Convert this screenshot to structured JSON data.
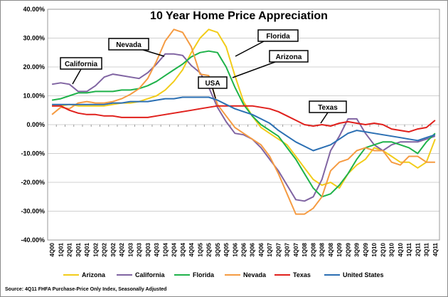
{
  "chart_data": {
    "type": "line",
    "title": "10 Year Home Price Appreciation",
    "xlabel": "",
    "ylabel": "",
    "ylim": [
      -40,
      40
    ],
    "y_ticks": [
      "40.00%",
      "30.00%",
      "20.00%",
      "10.00%",
      "0.00%",
      "-10.00%",
      "-20.00%",
      "-30.00%",
      "-40.00%"
    ],
    "y_tick_values": [
      40,
      30,
      20,
      10,
      0,
      -10,
      -20,
      -30,
      -40
    ],
    "grid": true,
    "legend_position": "bottom",
    "categories": [
      "4Q00",
      "1Q01",
      "2Q01",
      "3Q01",
      "4Q01",
      "1Q02",
      "2Q02",
      "3Q02",
      "4Q02",
      "1Q03",
      "2Q03",
      "3Q03",
      "4Q03",
      "1Q04",
      "2Q04",
      "3Q04",
      "4Q04",
      "1Q05",
      "2Q05",
      "3Q05",
      "4Q05",
      "1Q06",
      "2Q06",
      "3Q06",
      "4Q06",
      "1Q07",
      "2Q07",
      "3Q07",
      "4Q07",
      "1Q08",
      "2Q08",
      "3Q08",
      "4Q08",
      "1Q09",
      "2Q09",
      "3Q09",
      "4Q09",
      "1Q10",
      "2Q10",
      "3Q10",
      "4Q10",
      "1Q11",
      "2Q11",
      "3Q11",
      "4Q11"
    ],
    "series": [
      {
        "name": "Arizona",
        "color": "#f2cc1a",
        "values": [
          6.5,
          6.5,
          7.0,
          6.5,
          6.5,
          6.5,
          6.5,
          7.0,
          7.5,
          7.5,
          8.0,
          9.0,
          10.0,
          12.0,
          15.0,
          19.0,
          25.0,
          30.0,
          33.0,
          32.0,
          27.0,
          17.0,
          8.0,
          3.0,
          -1.0,
          -3.0,
          -5.0,
          -7.0,
          -11.0,
          -15.0,
          -19.0,
          -21.0,
          -20.0,
          -22.0,
          -17.0,
          -14.0,
          -12.0,
          -8.0,
          -9.0,
          -11.0,
          -13.0,
          -13.0,
          -15.0,
          -13.0,
          -5.0
        ]
      },
      {
        "name": "California",
        "color": "#8064a2",
        "values": [
          14.0,
          14.5,
          14.0,
          11.5,
          11.5,
          13.5,
          16.5,
          17.5,
          17.0,
          16.5,
          16.0,
          18.0,
          21.0,
          24.5,
          24.5,
          24.0,
          20.5,
          18.0,
          13.0,
          6.0,
          1.0,
          -3.0,
          -3.5,
          -5.0,
          -8.0,
          -12.0,
          -16.0,
          -21.0,
          -26.0,
          -26.5,
          -25.0,
          -19.0,
          -9.0,
          -4.0,
          2.0,
          2.0,
          -3.0,
          -7.0,
          -9.0,
          -7.0,
          -6.0,
          -6.0,
          -6.0,
          -5.0,
          -4.0
        ]
      },
      {
        "name": "Florida",
        "color": "#1fb24a",
        "values": [
          8.5,
          9.0,
          10.0,
          11.0,
          11.0,
          11.5,
          11.5,
          11.5,
          12.0,
          12.0,
          12.5,
          13.5,
          15.0,
          17.0,
          19.0,
          21.0,
          23.5,
          25.0,
          25.5,
          25.0,
          20.0,
          13.0,
          7.0,
          3.0,
          0.0,
          -2.0,
          -4.0,
          -8.0,
          -12.0,
          -17.0,
          -22.0,
          -25.0,
          -24.0,
          -21.0,
          -17.0,
          -12.0,
          -8.0,
          -7.0,
          -6.0,
          -6.0,
          -7.0,
          -8.0,
          -10.0,
          -6.0,
          -3.0
        ]
      },
      {
        "name": "Nevada",
        "color": "#f59b42",
        "values": [
          3.5,
          6.0,
          5.5,
          7.5,
          8.0,
          7.5,
          7.5,
          8.0,
          9.0,
          10.5,
          12.5,
          16.0,
          22.0,
          29.0,
          33.0,
          32.0,
          27.0,
          17.5,
          17.0,
          7.0,
          3.0,
          -1.0,
          -3.0,
          -5.0,
          -7.0,
          -11.0,
          -17.0,
          -24.0,
          -31.0,
          -31.0,
          -29.0,
          -25.0,
          -16.0,
          -13.0,
          -12.0,
          -9.0,
          -8.0,
          -9.0,
          -9.0,
          -13.0,
          -14.0,
          -11.0,
          -11.0,
          -13.0,
          -13.0
        ]
      },
      {
        "name": "Texas",
        "color": "#e0201c",
        "values": [
          6.5,
          6.5,
          5.0,
          4.0,
          3.5,
          3.5,
          3.0,
          3.0,
          2.5,
          2.5,
          2.5,
          2.5,
          3.0,
          3.5,
          4.0,
          4.5,
          5.0,
          5.5,
          6.0,
          6.5,
          6.5,
          6.5,
          6.5,
          6.5,
          6.0,
          5.5,
          4.5,
          3.0,
          1.5,
          0.0,
          -0.5,
          0.0,
          -0.5,
          0.5,
          1.0,
          0.5,
          0.0,
          0.5,
          0.0,
          -1.5,
          -2.0,
          -2.5,
          -1.5,
          -1.0,
          1.5
        ]
      },
      {
        "name": "United States",
        "color": "#2b6fb3",
        "values": [
          7.0,
          7.0,
          7.0,
          7.0,
          7.0,
          7.0,
          7.0,
          7.5,
          7.5,
          8.0,
          8.0,
          8.0,
          8.5,
          9.0,
          9.0,
          9.5,
          9.5,
          9.5,
          9.5,
          8.5,
          7.0,
          5.5,
          4.5,
          3.5,
          2.0,
          0.5,
          -2.0,
          -4.0,
          -6.0,
          -7.5,
          -9.0,
          -8.0,
          -7.0,
          -5.0,
          -3.0,
          -2.0,
          -2.5,
          -3.0,
          -3.5,
          -4.0,
          -4.5,
          -5.0,
          -5.5,
          -4.5,
          -3.5
        ]
      }
    ],
    "annotations": [
      {
        "text": "Nevada",
        "series": "Nevada"
      },
      {
        "text": "Florida",
        "series": "Florida"
      },
      {
        "text": "California",
        "series": "California"
      },
      {
        "text": "Arizona",
        "series": "Arizona"
      },
      {
        "text": "USA",
        "series": "United States"
      },
      {
        "text": "Texas",
        "series": "Texas"
      }
    ]
  },
  "source_note": "Source: 4Q11 FHFA Purchase-Price Only Index, Seasonally Adjusted"
}
